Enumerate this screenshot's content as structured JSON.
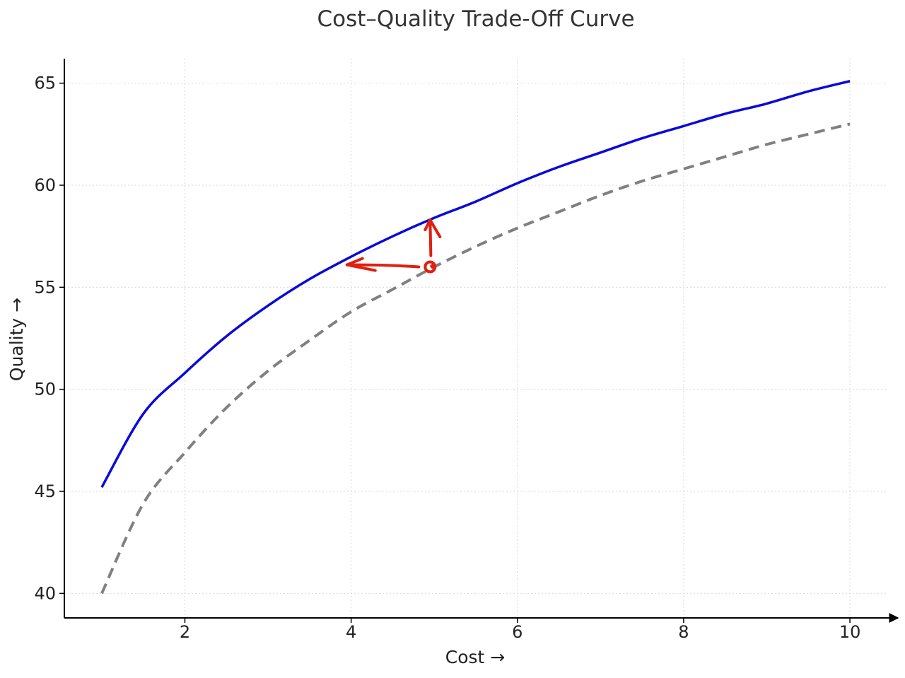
{
  "chart_data": {
    "type": "line",
    "title": "Cost–Quality Trade-Off Curve",
    "xlabel": "Cost →",
    "ylabel": "Quality →",
    "xlim": [
      0.55,
      10.45
    ],
    "ylim": [
      38.8,
      66.2
    ],
    "xticks": [
      2,
      4,
      6,
      8,
      10
    ],
    "yticks": [
      40,
      45,
      50,
      55,
      60,
      65
    ],
    "grid": true,
    "legend": "none",
    "series": [
      {
        "style": "solid",
        "color": "#0a0ad8",
        "x": [
          1.0,
          1.5,
          2.0,
          2.5,
          3.0,
          3.5,
          4.0,
          4.5,
          5.0,
          5.5,
          6.0,
          6.5,
          7.0,
          7.5,
          8.0,
          8.5,
          9.0,
          9.5,
          10.0
        ],
        "values": [
          45.2,
          48.8,
          50.8,
          52.6,
          54.1,
          55.4,
          56.5,
          57.5,
          58.4,
          59.2,
          60.1,
          60.9,
          61.6,
          62.3,
          62.9,
          63.5,
          64.0,
          64.6,
          65.1
        ]
      },
      {
        "style": "dashed",
        "color": "#808080",
        "x": [
          1.0,
          1.5,
          2.0,
          2.5,
          3.0,
          3.5,
          4.0,
          4.5,
          5.0,
          5.5,
          6.0,
          6.5,
          7.0,
          7.5,
          8.0,
          8.5,
          9.0,
          9.5,
          10.0
        ],
        "values": [
          40.0,
          44.4,
          46.9,
          49.1,
          50.9,
          52.4,
          53.8,
          54.9,
          56.0,
          57.0,
          57.9,
          58.7,
          59.5,
          60.2,
          60.8,
          61.4,
          62.0,
          62.5,
          63.0
        ]
      }
    ],
    "annotations": {
      "color": "#e02010",
      "point": {
        "x": 4.95,
        "y": 56.0
      },
      "arrow_left_to": {
        "x": 3.95,
        "y": 56.1
      },
      "arrow_up_to": {
        "x": 4.95,
        "y": 58.3
      }
    }
  }
}
